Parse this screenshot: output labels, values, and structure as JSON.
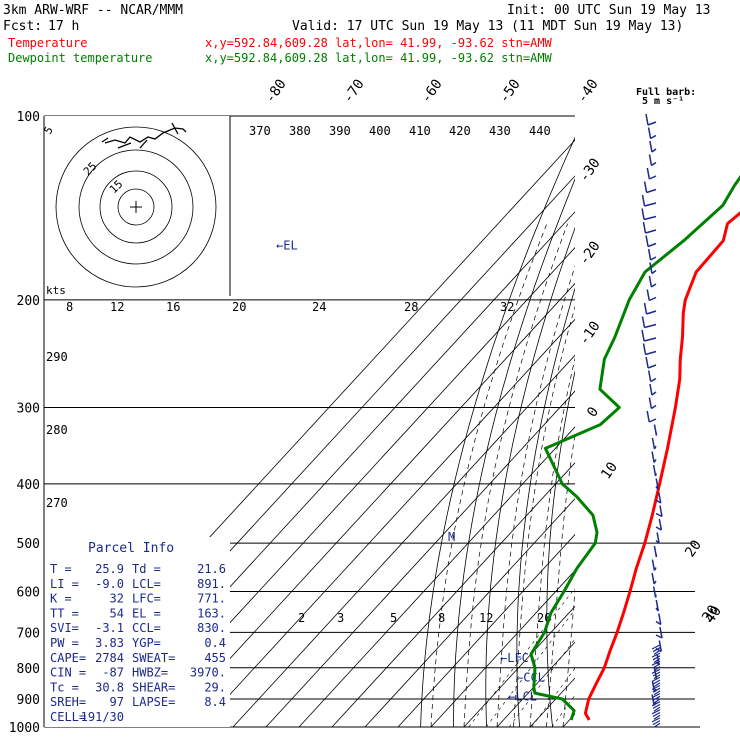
{
  "header": {
    "model": "3km ARW-WRF -- NCAR/MMM",
    "init": "Init: 00 UTC Sun 19 May 13",
    "fcst_label": "Fcst:",
    "fcst_value": "17 h",
    "valid": "Valid: 17 UTC Sun 19 May 13 (11 MDT Sun 19 May 13)",
    "temp_label": "Temperature",
    "dew_label": "Dewpoint temperature",
    "location": "x,y=592.84,609.28   lat,lon= 41.99, -93.62   stn=AMW",
    "temp_color": "#ff0000",
    "dew_color": "#008000"
  },
  "barb_legend": {
    "line1": "Full barb:",
    "line2": "5 m s⁻¹"
  },
  "hodograph": {
    "units": "kts",
    "ring_labels": [
      "5",
      "15",
      "25"
    ]
  },
  "parcel_info": {
    "title": "Parcel Info",
    "rows": [
      [
        "T  =",
        "25.9",
        "Td =",
        "21.6"
      ],
      [
        "LI =",
        "-9.0",
        "LCL=",
        "891."
      ],
      [
        "K  =",
        "32",
        "LFC=",
        "771."
      ],
      [
        "TT =",
        "54",
        "EL =",
        "163."
      ],
      [
        "SVI=",
        "-3.1",
        "CCL=",
        "830."
      ],
      [
        "PW =",
        "3.83",
        "YGP=",
        "0.4"
      ],
      [
        "CAPE=",
        "2784",
        "SWEAT=",
        "455"
      ],
      [
        "CIN =",
        "-87",
        "HWBZ=",
        "3970."
      ],
      [
        "Tc =",
        "30.8",
        "SHEAR=",
        "29."
      ],
      [
        "SREH=",
        "97",
        "LAPSE=",
        "8.4"
      ],
      [
        "CELL=",
        "191/30",
        "",
        ""
      ]
    ]
  },
  "chart_data": {
    "type": "line",
    "title": "",
    "y_axis": {
      "scale": "log",
      "ylim": [
        1000,
        100
      ],
      "ticks": [
        100,
        200,
        300,
        400,
        500,
        600,
        700,
        800,
        900,
        1000
      ]
    },
    "isotherm_labels": [
      "-80",
      "-70",
      "-60",
      "-50",
      "-40",
      "-30",
      "-20",
      "-10",
      "0",
      "10",
      "20",
      "30",
      "40"
    ],
    "theta_labels": [
      "370",
      "380",
      "390",
      "400",
      "410",
      "420",
      "430",
      "440"
    ],
    "mixing_ratio_labels_top": [
      "8",
      "12",
      "16",
      "20",
      "24",
      "28",
      "32"
    ],
    "mixing_ratio_labels_low": [
      "2",
      "3",
      "5",
      "8",
      "12",
      "20"
    ],
    "thetae_labels": [
      "290",
      "280",
      "270"
    ],
    "levels": [
      {
        "name": "EL",
        "text": "←EL",
        "p": 163
      },
      {
        "name": "LFC",
        "text": "←LFC",
        "p": 771
      },
      {
        "name": "CCL",
        "text": "←CCL",
        "p": 830
      },
      {
        "name": "LCL",
        "text": "←LCL",
        "p": 891
      }
    ],
    "freezing_marker": "M",
    "series": [
      {
        "name": "Temperature",
        "color": "#ff0000",
        "points": [
          [
            974,
            26
          ],
          [
            950,
            23
          ],
          [
            900,
            20
          ],
          [
            850,
            18
          ],
          [
            800,
            16
          ],
          [
            750,
            13
          ],
          [
            700,
            10
          ],
          [
            650,
            6.5
          ],
          [
            600,
            2.5
          ],
          [
            550,
            -2
          ],
          [
            500,
            -6.5
          ],
          [
            450,
            -12
          ],
          [
            400,
            -18.5
          ],
          [
            350,
            -26
          ],
          [
            300,
            -35
          ],
          [
            270,
            -41.5
          ],
          [
            250,
            -47
          ],
          [
            230,
            -52.5
          ],
          [
            210,
            -59
          ],
          [
            200,
            -62
          ],
          [
            180,
            -66.5
          ],
          [
            160,
            -67
          ],
          [
            150,
            -70.5
          ],
          [
            140,
            -69
          ],
          [
            130,
            -65
          ],
          [
            120,
            -60
          ],
          [
            110,
            -55
          ],
          [
            102,
            -50.5
          ]
        ]
      },
      {
        "name": "Dewpoint temperature",
        "color": "#008000",
        "points": [
          [
            974,
            20.5
          ],
          [
            940,
            18.8
          ],
          [
            900,
            12
          ],
          [
            880,
            2
          ],
          [
            860,
            0
          ],
          [
            800,
            -5
          ],
          [
            760,
            -10
          ],
          [
            700,
            -12
          ],
          [
            650,
            -15.5
          ],
          [
            600,
            -17.5
          ],
          [
            550,
            -20
          ],
          [
            500,
            -21.5
          ],
          [
            480,
            -24
          ],
          [
            450,
            -30
          ],
          [
            420,
            -40
          ],
          [
            400,
            -48
          ],
          [
            350,
            -63
          ],
          [
            320,
            -53
          ],
          [
            300,
            -52
          ],
          [
            280,
            -63
          ],
          [
            250,
            -70
          ],
          [
            230,
            -73
          ],
          [
            200,
            -79
          ],
          [
            180,
            -82
          ],
          [
            160,
            -79
          ],
          [
            140,
            -77
          ],
          [
            130,
            -79
          ],
          [
            110,
            -82
          ],
          [
            100,
            -84
          ]
        ]
      }
    ]
  }
}
